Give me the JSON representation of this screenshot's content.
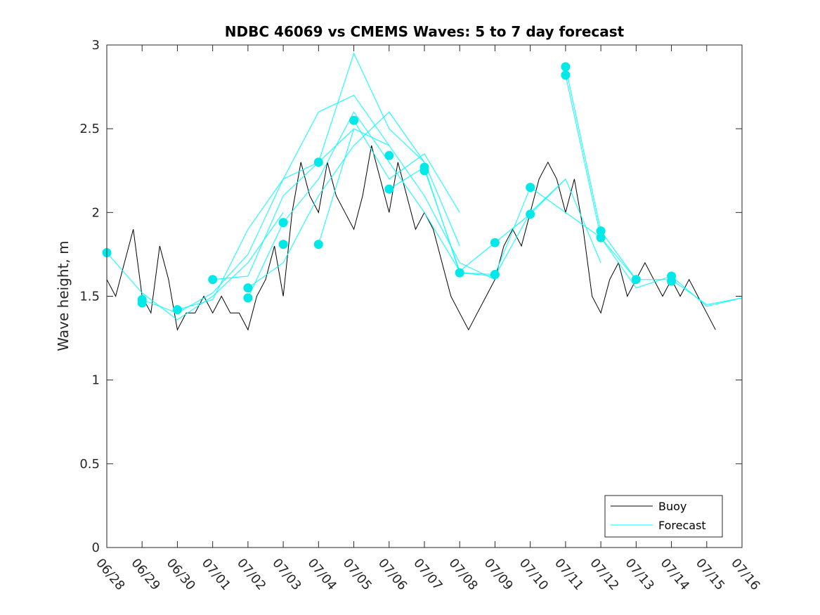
{
  "chart_data": {
    "type": "line",
    "title": "NDBC 46069 vs CMEMS Waves: 5 to 7 day forecast",
    "xlabel": "",
    "ylabel": "Wave height, m",
    "x_tick_labels": [
      "06/28",
      "06/29",
      "06/30",
      "07/01",
      "07/02",
      "07/03",
      "07/04",
      "07/05",
      "07/06",
      "07/07",
      "07/08",
      "07/09",
      "07/10",
      "07/11",
      "07/12",
      "07/13",
      "07/14",
      "07/15",
      "07/16"
    ],
    "xlim": [
      "06/28",
      "07/16"
    ],
    "y_ticks": [
      0,
      0.5,
      1,
      1.5,
      2,
      2.5,
      3
    ],
    "y_tick_labels": [
      "0",
      "0.5",
      "1",
      "1.5",
      "2",
      "2.5",
      "3"
    ],
    "ylim": [
      0,
      3
    ],
    "grid": false,
    "legend": {
      "placement": "bottom-right",
      "entries": [
        "Buoy",
        "Forecast"
      ]
    },
    "colors": {
      "buoy": "#000000",
      "forecast": "#00ffff",
      "markers": "#00e8e8"
    },
    "buoy": {
      "name": "Buoy",
      "values": [
        [
          "06/28",
          1.6
        ],
        [
          "06/28 06:00",
          1.5
        ],
        [
          "06/28 12:00",
          1.7
        ],
        [
          "06/28 18:00",
          1.9
        ],
        [
          "06/29",
          1.5
        ],
        [
          "06/29 06:00",
          1.4
        ],
        [
          "06/29 12:00",
          1.8
        ],
        [
          "06/29 18:00",
          1.6
        ],
        [
          "06/30",
          1.3
        ],
        [
          "06/30 06:00",
          1.4
        ],
        [
          "06/30 12:00",
          1.4
        ],
        [
          "06/30 18:00",
          1.5
        ],
        [
          "07/01",
          1.4
        ],
        [
          "07/01 06:00",
          1.5
        ],
        [
          "07/01 12:00",
          1.4
        ],
        [
          "07/01 18:00",
          1.4
        ],
        [
          "07/02",
          1.3
        ],
        [
          "07/02 06:00",
          1.5
        ],
        [
          "07/02 12:00",
          1.6
        ],
        [
          "07/02 18:00",
          1.8
        ],
        [
          "07/03",
          1.5
        ],
        [
          "07/03 06:00",
          2.0
        ],
        [
          "07/03 12:00",
          2.3
        ],
        [
          "07/03 18:00",
          2.1
        ],
        [
          "07/04",
          2.0
        ],
        [
          "07/04 06:00",
          2.3
        ],
        [
          "07/04 12:00",
          2.1
        ],
        [
          "07/04 18:00",
          2.0
        ],
        [
          "07/05",
          1.9
        ],
        [
          "07/05 06:00",
          2.1
        ],
        [
          "07/05 12:00",
          2.4
        ],
        [
          "07/05 18:00",
          2.2
        ],
        [
          "07/06",
          2.0
        ],
        [
          "07/06 06:00",
          2.3
        ],
        [
          "07/06 12:00",
          2.1
        ],
        [
          "07/06 18:00",
          1.9
        ],
        [
          "07/07",
          2.0
        ],
        [
          "07/07 06:00",
          1.9
        ],
        [
          "07/07 12:00",
          1.7
        ],
        [
          "07/07 18:00",
          1.5
        ],
        [
          "07/08",
          1.4
        ],
        [
          "07/08 06:00",
          1.3
        ],
        [
          "07/08 12:00",
          1.4
        ],
        [
          "07/08 18:00",
          1.5
        ],
        [
          "07/09",
          1.6
        ],
        [
          "07/09 06:00",
          1.8
        ],
        [
          "07/09 12:00",
          1.9
        ],
        [
          "07/09 18:00",
          1.8
        ],
        [
          "07/10",
          2.0
        ],
        [
          "07/10 06:00",
          2.2
        ],
        [
          "07/10 12:00",
          2.3
        ],
        [
          "07/10 18:00",
          2.2
        ],
        [
          "07/11",
          2.0
        ],
        [
          "07/11 06:00",
          2.2
        ],
        [
          "07/11 12:00",
          1.9
        ],
        [
          "07/11 18:00",
          1.5
        ],
        [
          "07/12",
          1.4
        ],
        [
          "07/12 06:00",
          1.6
        ],
        [
          "07/12 12:00",
          1.7
        ],
        [
          "07/12 18:00",
          1.5
        ],
        [
          "07/13",
          1.6
        ],
        [
          "07/13 06:00",
          1.7
        ],
        [
          "07/13 12:00",
          1.6
        ],
        [
          "07/13 18:00",
          1.5
        ],
        [
          "07/14",
          1.6
        ],
        [
          "07/14 06:00",
          1.5
        ],
        [
          "07/14 12:00",
          1.6
        ],
        [
          "07/14 18:00",
          1.5
        ],
        [
          "07/15",
          1.4
        ],
        [
          "07/15 06:00",
          1.3
        ]
      ]
    },
    "forecasts": {
      "name": "Forecast",
      "series": [
        {
          "values": [
            [
              "06/28",
              1.76
            ],
            [
              "06/29",
              1.52
            ],
            [
              "06/30",
              1.36
            ],
            [
              "07/01",
              1.5
            ],
            [
              "07/02",
              1.7
            ],
            [
              "07/03",
              2.0
            ]
          ]
        },
        {
          "values": [
            [
              "06/29",
              1.48
            ],
            [
              "06/30",
              1.4
            ],
            [
              "07/01",
              1.52
            ],
            [
              "07/02",
              1.75
            ],
            [
              "07/03",
              2.2
            ],
            [
              "07/04",
              2.3
            ],
            [
              "07/05",
              2.5
            ]
          ]
        },
        {
          "values": [
            [
              "06/30",
              1.42
            ],
            [
              "07/01",
              1.48
            ],
            [
              "07/02",
              1.9
            ],
            [
              "07/03",
              2.2
            ],
            [
              "07/04",
              2.6
            ],
            [
              "07/05",
              2.7
            ],
            [
              "07/06",
              2.4
            ]
          ]
        },
        {
          "values": [
            [
              "07/01",
              1.6
            ],
            [
              "07/02",
              1.62
            ],
            [
              "07/03",
              2.1
            ],
            [
              "07/04",
              2.3
            ],
            [
              "07/05",
              2.95
            ],
            [
              "07/06",
              2.5
            ],
            [
              "07/07",
              2.3
            ]
          ]
        },
        {
          "values": [
            [
              "07/02",
              1.55
            ],
            [
              "07/03",
              1.7
            ],
            [
              "07/04",
              2.1
            ],
            [
              "07/05",
              2.4
            ],
            [
              "07/06",
              2.6
            ],
            [
              "07/07",
              2.3
            ],
            [
              "07/08",
              1.8
            ]
          ]
        },
        {
          "values": [
            [
              "07/02",
              1.49
            ],
            [
              "07/03",
              1.94
            ],
            [
              "07/04",
              2.2
            ],
            [
              "07/05",
              2.6
            ],
            [
              "07/06",
              2.3
            ],
            [
              "07/07",
              2.0
            ],
            [
              "07/08",
              1.65
            ]
          ]
        },
        {
          "values": [
            [
              "07/04",
              1.81
            ],
            [
              "07/05",
              2.5
            ],
            [
              "07/06",
              2.4
            ],
            [
              "07/07",
              2.1
            ],
            [
              "07/08",
              1.7
            ],
            [
              "07/09",
              1.6
            ]
          ]
        },
        {
          "values": [
            [
              "07/05",
              2.55
            ],
            [
              "07/06",
              2.2
            ],
            [
              "07/07",
              2.35
            ],
            [
              "07/08",
              2.0
            ]
          ]
        },
        {
          "values": [
            [
              "07/06",
              2.14
            ],
            [
              "07/07",
              2.27
            ],
            [
              "07/08",
              1.64
            ],
            [
              "07/09",
              1.62
            ],
            [
              "07/10",
              2.0
            ],
            [
              "07/11",
              2.2
            ]
          ]
        },
        {
          "values": [
            [
              "07/07",
              2.26
            ],
            [
              "07/08",
              1.65
            ],
            [
              "07/09",
              1.82
            ],
            [
              "07/10",
              1.99
            ],
            [
              "07/11",
              2.2
            ],
            [
              "07/12",
              1.7
            ]
          ]
        },
        {
          "values": [
            [
              "07/08",
              1.64
            ],
            [
              "07/09",
              1.63
            ],
            [
              "07/10",
              2.15
            ],
            [
              "07/11",
              2.0
            ],
            [
              "07/12",
              1.85
            ],
            [
              "07/13",
              1.6
            ]
          ]
        },
        {
          "values": [
            [
              "07/11",
              2.87
            ],
            [
              "07/12",
              1.89
            ],
            [
              "07/13",
              1.6
            ],
            [
              "07/14",
              1.6
            ],
            [
              "07/15",
              1.45
            ],
            [
              "07/16",
              1.49
            ]
          ]
        },
        {
          "values": [
            [
              "07/11",
              2.82
            ],
            [
              "07/12",
              1.85
            ],
            [
              "07/13",
              1.55
            ],
            [
              "07/14",
              1.62
            ],
            [
              "07/15",
              1.44
            ],
            [
              "07/16",
              1.49
            ]
          ]
        }
      ]
    },
    "markers": [
      [
        "06/28",
        1.76
      ],
      [
        "06/29",
        1.48
      ],
      [
        "06/29",
        1.46
      ],
      [
        "06/30",
        1.42
      ],
      [
        "07/01",
        1.6
      ],
      [
        "07/02",
        1.55
      ],
      [
        "07/02",
        1.49
      ],
      [
        "07/03",
        1.94
      ],
      [
        "07/03",
        1.81
      ],
      [
        "07/04",
        2.3
      ],
      [
        "07/04",
        1.81
      ],
      [
        "07/05",
        2.55
      ],
      [
        "07/06",
        2.34
      ],
      [
        "07/06",
        2.14
      ],
      [
        "07/07",
        2.27
      ],
      [
        "07/07",
        2.25
      ],
      [
        "07/08",
        1.64
      ],
      [
        "07/09",
        1.82
      ],
      [
        "07/09",
        1.63
      ],
      [
        "07/10",
        2.15
      ],
      [
        "07/10",
        1.99
      ],
      [
        "07/11",
        2.87
      ],
      [
        "07/11",
        2.82
      ],
      [
        "07/12",
        1.89
      ],
      [
        "07/12",
        1.85
      ],
      [
        "07/13",
        1.6
      ],
      [
        "07/14",
        1.62
      ],
      [
        "07/14",
        1.59
      ]
    ]
  }
}
